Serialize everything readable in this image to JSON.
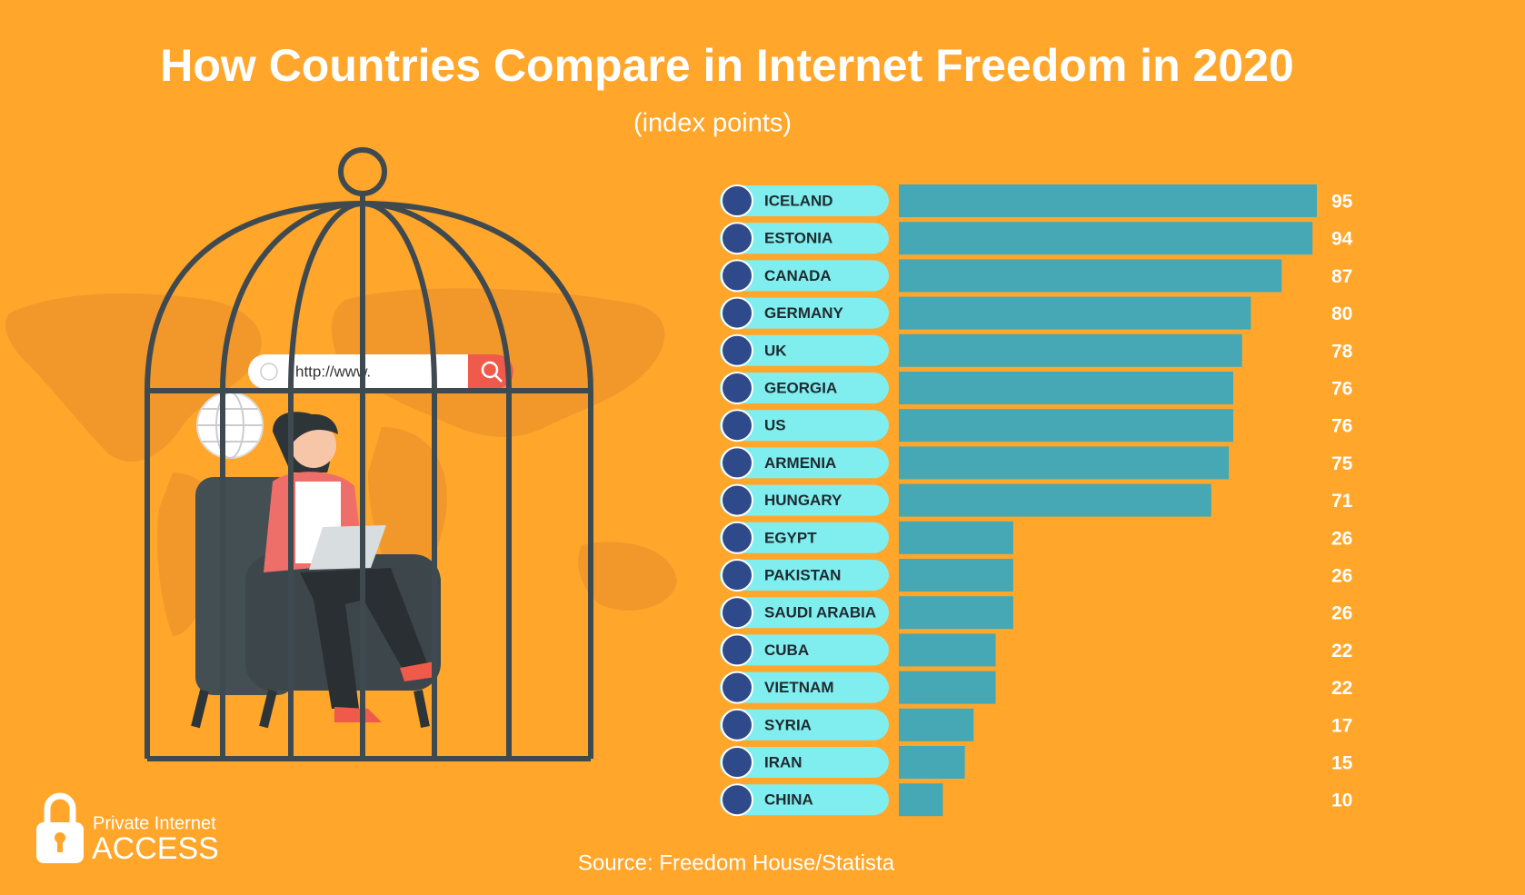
{
  "chart_data": {
    "type": "bar",
    "orientation": "horizontal",
    "title": "How Countries Compare in Internet Freedom in 2020",
    "subtitle": "(index points)",
    "categories": [
      "ICELAND",
      "ESTONIA",
      "CANADA",
      "GERMANY",
      "UK",
      "GEORGIA",
      "US",
      "ARMENIA",
      "HUNGARY",
      "EGYPT",
      "PAKISTAN",
      "SAUDI ARABIA",
      "CUBA",
      "VIETNAM",
      "SYRIA",
      "IRAN",
      "CHINA"
    ],
    "values": [
      95,
      94,
      87,
      80,
      78,
      76,
      76,
      75,
      71,
      26,
      26,
      26,
      22,
      22,
      17,
      15,
      10
    ],
    "color": "#45a8b4",
    "source": "Source: Freedom House/Statista"
  },
  "illustration": {
    "search_text": "http://www."
  },
  "logo": {
    "line1": "Private Internet",
    "line2": "ACCESS"
  }
}
